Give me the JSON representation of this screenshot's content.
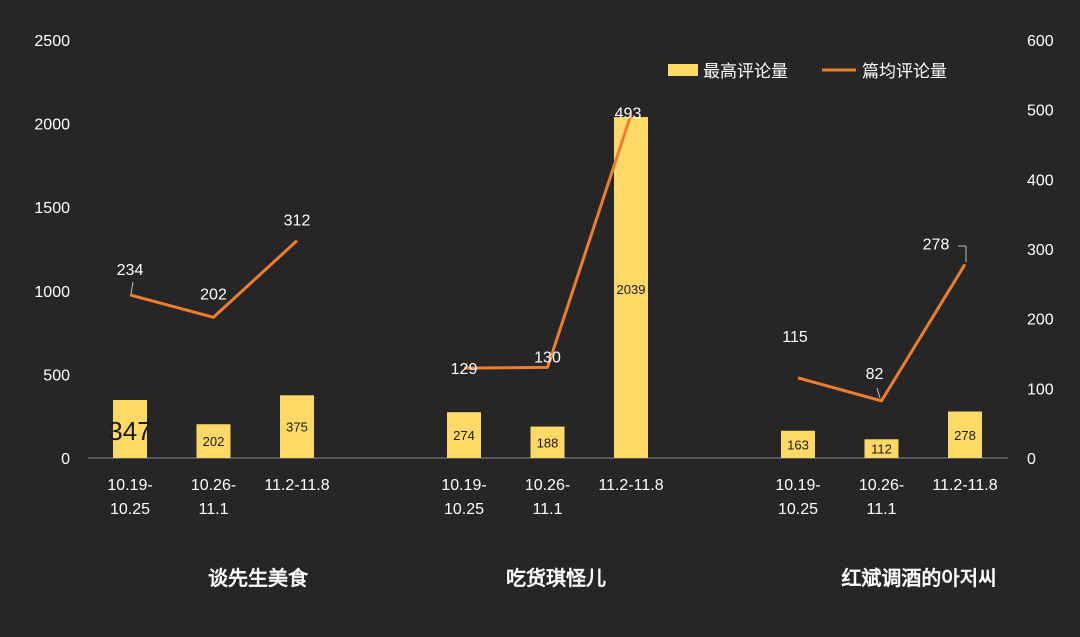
{
  "chart_data": {
    "type": "bar",
    "groups": [
      "谈先生美食",
      "吃货琪怪儿",
      "红斌调酒的아저씨"
    ],
    "categories": [
      "10.19-10.25",
      "10.26-11.1",
      "11.2-11.8"
    ],
    "series": [
      {
        "name": "最高评论量",
        "type": "bar",
        "axis": "left",
        "values": [
          [
            347,
            202,
            375
          ],
          [
            274,
            188,
            2039
          ],
          [
            163,
            112,
            278
          ]
        ],
        "value_labels": [
          [
            "347",
            "202",
            "375"
          ],
          [
            "274",
            "188",
            "2039"
          ],
          [
            "163",
            "112",
            "278"
          ]
        ]
      },
      {
        "name": "篇均评论量",
        "type": "line",
        "axis": "right",
        "values": [
          [
            234,
            202,
            312
          ],
          [
            129,
            130,
            493
          ],
          [
            115,
            82,
            278
          ]
        ],
        "value_labels": [
          [
            "234",
            "202",
            "312"
          ],
          [
            "129",
            "130",
            "493"
          ],
          [
            "115",
            "82",
            "278"
          ]
        ]
      }
    ],
    "y_left": {
      "min": 0,
      "max": 2500,
      "ticks": [
        "0",
        "500",
        "1000",
        "1500",
        "2000",
        "2500"
      ]
    },
    "y_right": {
      "min": 0,
      "max": 600,
      "ticks": [
        "0",
        "100",
        "200",
        "300",
        "400",
        "500",
        "600"
      ]
    },
    "category_labels": [
      [
        "10.19-",
        "10.25"
      ],
      [
        "10.26-",
        "11.1"
      ],
      [
        "11.2-11.8",
        ""
      ]
    ],
    "legend_position": "top-right",
    "grid": false,
    "colors": {
      "bar": "#FFD966",
      "line": "#ED7D31",
      "background": "#262626",
      "text": "#FFFFFF"
    }
  }
}
